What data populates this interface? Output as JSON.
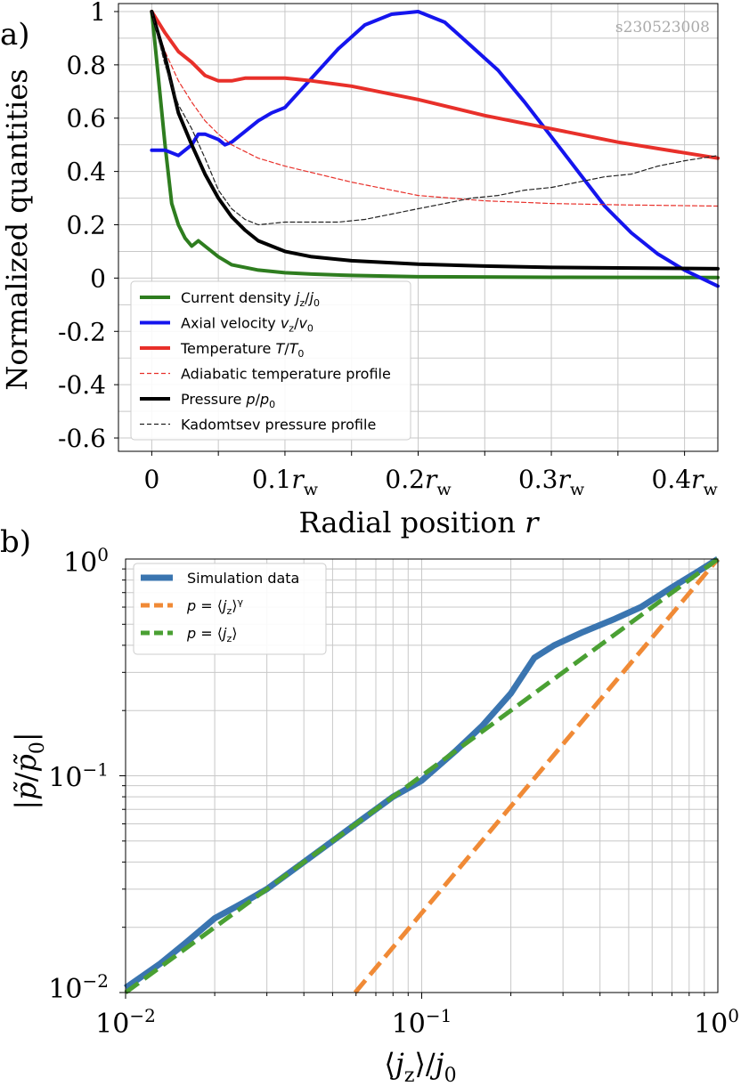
{
  "watermark": "s230523008",
  "chart_data": [
    {
      "type": "line",
      "panel_label": "a)",
      "xlabel_parts": [
        "Radial position ",
        "r"
      ],
      "ylabel": "Normalized quantities",
      "xlim": [
        -0.025,
        0.425
      ],
      "ylim": [
        -0.65,
        1.03
      ],
      "xticks": [
        0,
        0.1,
        0.2,
        0.3,
        0.4
      ],
      "xtick_labels": [
        {
          "num": "0",
          "r": "",
          "sub": ""
        },
        {
          "num": "0.1",
          "r": "r",
          "sub": "w"
        },
        {
          "num": "0.2",
          "r": "r",
          "sub": "w"
        },
        {
          "num": "0.3",
          "r": "r",
          "sub": "w"
        },
        {
          "num": "0.4",
          "r": "r",
          "sub": "w"
        }
      ],
      "yticks": [
        -0.6,
        -0.4,
        -0.2,
        0,
        0.2,
        0.4,
        0.6,
        0.8,
        1
      ],
      "ytick_labels": [
        "-0.6",
        "-0.4",
        "-0.2",
        "0",
        "0.2",
        "0.4",
        "0.6",
        "0.8",
        "1"
      ],
      "grid": true,
      "legend_position": "lower-left",
      "series": [
        {
          "name_parts": [
            [
              "Current density ",
              "n"
            ],
            [
              "j",
              "i"
            ],
            [
              "z",
              "sub"
            ],
            [
              "/",
              "n"
            ],
            [
              "j",
              "i"
            ],
            [
              "0",
              "sub"
            ]
          ],
          "color": "#2e7d1f",
          "style": "solid",
          "width": 4,
          "x": [
            0,
            0.005,
            0.01,
            0.015,
            0.02,
            0.025,
            0.03,
            0.035,
            0.04,
            0.05,
            0.06,
            0.08,
            0.1,
            0.12,
            0.15,
            0.2,
            0.3,
            0.425
          ],
          "y": [
            1,
            0.75,
            0.5,
            0.28,
            0.2,
            0.15,
            0.12,
            0.14,
            0.12,
            0.08,
            0.05,
            0.03,
            0.02,
            0.015,
            0.01,
            0.005,
            0.003,
            0.002
          ]
        },
        {
          "name_parts": [
            [
              "Axial velocity ",
              "n"
            ],
            [
              "v",
              "i"
            ],
            [
              "z",
              "sub"
            ],
            [
              "/",
              "n"
            ],
            [
              "v",
              "i"
            ],
            [
              "0",
              "sub"
            ]
          ],
          "color": "#1515ee",
          "style": "solid",
          "width": 4,
          "x": [
            0,
            0.01,
            0.02,
            0.025,
            0.03,
            0.035,
            0.04,
            0.05,
            0.055,
            0.06,
            0.07,
            0.08,
            0.09,
            0.1,
            0.12,
            0.14,
            0.16,
            0.18,
            0.2,
            0.22,
            0.24,
            0.26,
            0.28,
            0.3,
            0.32,
            0.34,
            0.36,
            0.38,
            0.4,
            0.425
          ],
          "y": [
            0.48,
            0.48,
            0.46,
            0.48,
            0.5,
            0.54,
            0.54,
            0.52,
            0.5,
            0.51,
            0.55,
            0.59,
            0.62,
            0.64,
            0.75,
            0.86,
            0.95,
            0.99,
            1.0,
            0.96,
            0.87,
            0.78,
            0.66,
            0.53,
            0.4,
            0.27,
            0.17,
            0.09,
            0.03,
            -0.03
          ]
        },
        {
          "name_parts": [
            [
              "Temperature ",
              "n"
            ],
            [
              "T",
              "i"
            ],
            [
              "/",
              "n"
            ],
            [
              "T",
              "i"
            ],
            [
              "0",
              "sub"
            ]
          ],
          "color": "#e8302a",
          "style": "solid",
          "width": 4,
          "x": [
            0,
            0.01,
            0.02,
            0.03,
            0.04,
            0.05,
            0.06,
            0.07,
            0.08,
            0.1,
            0.12,
            0.15,
            0.2,
            0.25,
            0.3,
            0.35,
            0.4,
            0.425
          ],
          "y": [
            1,
            0.92,
            0.85,
            0.81,
            0.76,
            0.74,
            0.74,
            0.75,
            0.75,
            0.75,
            0.74,
            0.72,
            0.67,
            0.61,
            0.56,
            0.51,
            0.47,
            0.45
          ]
        },
        {
          "name_parts": [
            [
              "Adiabatic temperature profile",
              "n"
            ]
          ],
          "color": "#e8302a",
          "style": "dashed",
          "width": 1.2,
          "x": [
            0,
            0.01,
            0.02,
            0.03,
            0.04,
            0.05,
            0.06,
            0.08,
            0.1,
            0.15,
            0.2,
            0.25,
            0.3,
            0.35,
            0.425
          ],
          "y": [
            1,
            0.85,
            0.74,
            0.66,
            0.59,
            0.54,
            0.5,
            0.45,
            0.42,
            0.36,
            0.31,
            0.29,
            0.28,
            0.275,
            0.27
          ]
        },
        {
          "name_parts": [
            [
              "Pressure ",
              "n"
            ],
            [
              "p",
              "i"
            ],
            [
              "/",
              "n"
            ],
            [
              "p",
              "i"
            ],
            [
              "0",
              "sub"
            ]
          ],
          "color": "#000000",
          "style": "solid",
          "width": 4,
          "x": [
            0,
            0.01,
            0.02,
            0.03,
            0.04,
            0.05,
            0.06,
            0.07,
            0.08,
            0.1,
            0.12,
            0.15,
            0.2,
            0.25,
            0.3,
            0.35,
            0.425
          ],
          "y": [
            1,
            0.83,
            0.62,
            0.5,
            0.39,
            0.3,
            0.23,
            0.18,
            0.14,
            0.1,
            0.08,
            0.065,
            0.052,
            0.045,
            0.04,
            0.038,
            0.035
          ]
        },
        {
          "name_parts": [
            [
              "Kadomtsev pressure profile",
              "n"
            ]
          ],
          "color": "#222222",
          "style": "dashed",
          "width": 1.2,
          "x": [
            0,
            0.01,
            0.02,
            0.03,
            0.04,
            0.05,
            0.06,
            0.07,
            0.08,
            0.1,
            0.12,
            0.14,
            0.16,
            0.18,
            0.2,
            0.22,
            0.24,
            0.26,
            0.28,
            0.3,
            0.32,
            0.34,
            0.36,
            0.38,
            0.4,
            0.425
          ],
          "y": [
            1,
            0.8,
            0.65,
            0.56,
            0.45,
            0.33,
            0.26,
            0.22,
            0.2,
            0.21,
            0.21,
            0.21,
            0.22,
            0.24,
            0.26,
            0.28,
            0.3,
            0.31,
            0.33,
            0.34,
            0.36,
            0.38,
            0.39,
            0.42,
            0.44,
            0.46
          ]
        }
      ]
    },
    {
      "type": "line",
      "panel_label": "b)",
      "xscale": "log",
      "yscale": "log",
      "xlim": [
        0.01,
        1
      ],
      "ylim": [
        0.01,
        1
      ],
      "xticks": [
        0.01,
        0.1,
        1
      ],
      "xtick_labels": [
        [
          "10",
          "−2"
        ],
        [
          "10",
          "−1"
        ],
        [
          "10",
          "0"
        ]
      ],
      "yticks": [
        0.01,
        0.1,
        1
      ],
      "ytick_labels": [
        [
          "10",
          "−2"
        ],
        [
          "10",
          "−1"
        ],
        [
          "10",
          "0"
        ]
      ],
      "xlabel_parts": [
        [
          "⟨",
          "n"
        ],
        [
          "j",
          "i"
        ],
        [
          "z",
          "sub"
        ],
        [
          "⟩/",
          "n"
        ],
        [
          "j",
          "i"
        ],
        [
          "0",
          "sub"
        ]
      ],
      "ylabel_parts": [
        [
          "|",
          "n"
        ],
        [
          "p̃",
          "i"
        ],
        [
          "/",
          "n"
        ],
        [
          "p̃",
          "i"
        ],
        [
          "0",
          "sub"
        ],
        [
          "|",
          "n"
        ]
      ],
      "grid": true,
      "legend_position": "upper-left",
      "series": [
        {
          "name_parts": [
            [
              "Simulation data",
              "n"
            ]
          ],
          "color": "#3a75b0",
          "style": "solid",
          "width": 7,
          "x": [
            0.01,
            0.013,
            0.016,
            0.02,
            0.025,
            0.03,
            0.04,
            0.05,
            0.06,
            0.08,
            0.1,
            0.13,
            0.16,
            0.2,
            0.24,
            0.28,
            0.35,
            0.45,
            0.55,
            0.7,
            0.85,
            1
          ],
          "y": [
            0.0105,
            0.0135,
            0.017,
            0.022,
            0.026,
            0.03,
            0.04,
            0.05,
            0.06,
            0.08,
            0.095,
            0.13,
            0.17,
            0.24,
            0.35,
            0.4,
            0.46,
            0.53,
            0.6,
            0.74,
            0.87,
            1
          ]
        },
        {
          "name_parts": [
            [
              "p",
              "i"
            ],
            [
              " = ⟨",
              "n"
            ],
            [
              "j",
              "i"
            ],
            [
              "z",
              "sub"
            ],
            [
              "⟩",
              "n"
            ],
            [
              "γ",
              "sup"
            ]
          ],
          "color": "#f08a36",
          "style": "dashed",
          "width": 5,
          "x": [
            0.0596,
            1
          ],
          "y": [
            0.01,
            1
          ]
        },
        {
          "name_parts": [
            [
              "p",
              "i"
            ],
            [
              " = ⟨",
              "n"
            ],
            [
              "j",
              "i"
            ],
            [
              "z",
              "sub"
            ],
            [
              "⟩",
              "n"
            ]
          ],
          "color": "#4aa033",
          "style": "dashed",
          "width": 5,
          "x": [
            0.01,
            1
          ],
          "y": [
            0.01,
            1
          ]
        }
      ]
    }
  ]
}
